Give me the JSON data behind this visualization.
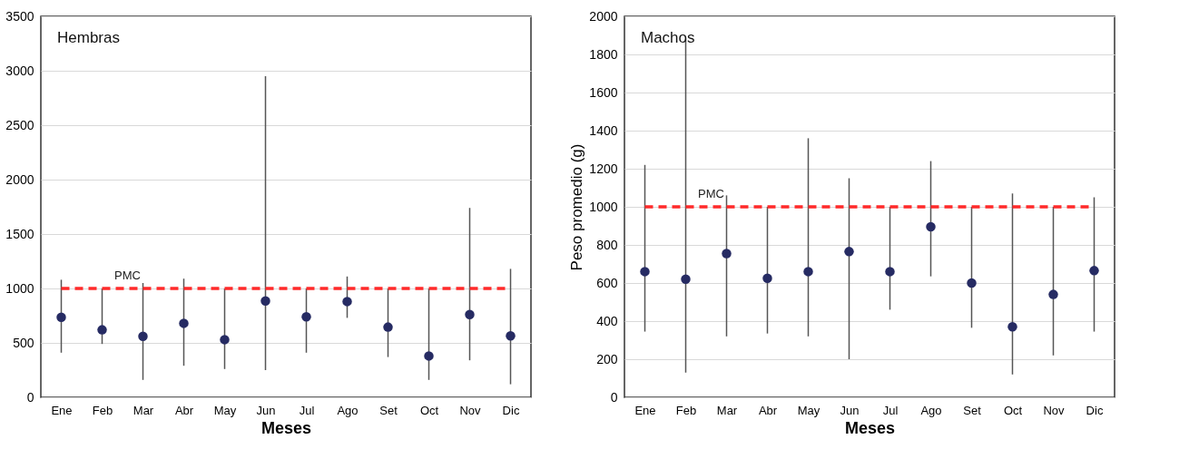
{
  "chart_data": [
    {
      "type": "scatter",
      "title": "Hembras",
      "xlabel": "Meses",
      "categories": [
        "Ene",
        "Feb",
        "Mar",
        "Abr",
        "May",
        "Jun",
        "Jul",
        "Ago",
        "Set",
        "Oct",
        "Nov",
        "Dic"
      ],
      "series": [
        {
          "color": "#262b63",
          "values": [
            735,
            620,
            560,
            680,
            530,
            885,
            740,
            880,
            645,
            380,
            760,
            565
          ],
          "errors": [
            [
              410,
              1080
            ],
            [
              490,
              1000
            ],
            [
              160,
              1050
            ],
            [
              290,
              1090
            ],
            [
              260,
              1000
            ],
            [
              250,
              2950
            ],
            [
              410,
              1000
            ],
            [
              730,
              1110
            ],
            [
              370,
              1000
            ],
            [
              160,
              1000
            ],
            [
              340,
              1740
            ],
            [
              120,
              1180
            ]
          ]
        }
      ],
      "ylim": [
        0,
        3500
      ],
      "yticks": [
        0,
        500,
        1000,
        1500,
        2000,
        2500,
        3000,
        3500
      ],
      "grid": "y",
      "marker": "circle",
      "ref_lines": [
        {
          "axis": "y",
          "value": 1000,
          "label": "PMC",
          "color": "#ff2a2a",
          "line_style": "dashed"
        }
      ]
    },
    {
      "type": "scatter",
      "title": "Machos",
      "xlabel": "Meses",
      "ylabel": "Peso promedio (g)",
      "categories": [
        "Ene",
        "Feb",
        "Mar",
        "Abr",
        "May",
        "Jun",
        "Jul",
        "Ago",
        "Set",
        "Oct",
        "Nov",
        "Dic"
      ],
      "series": [
        {
          "color": "#262b63",
          "values": [
            660,
            620,
            755,
            625,
            660,
            765,
            660,
            895,
            600,
            370,
            540,
            665
          ],
          "errors": [
            [
              345,
              1220
            ],
            [
              130,
              1880
            ],
            [
              320,
              1060
            ],
            [
              335,
              1000
            ],
            [
              320,
              1360
            ],
            [
              200,
              1150
            ],
            [
              460,
              1000
            ],
            [
              635,
              1240
            ],
            [
              365,
              1000
            ],
            [
              120,
              1070
            ],
            [
              220,
              1000
            ],
            [
              345,
              1050
            ]
          ]
        }
      ],
      "ylim": [
        0,
        2000
      ],
      "yticks": [
        0,
        200,
        400,
        600,
        800,
        1000,
        1200,
        1400,
        1600,
        1800,
        2000
      ],
      "grid": "y",
      "marker": "circle",
      "ref_lines": [
        {
          "axis": "y",
          "value": 1000,
          "label": "PMC",
          "color": "#ff2a2a",
          "line_style": "dashed"
        }
      ]
    }
  ]
}
